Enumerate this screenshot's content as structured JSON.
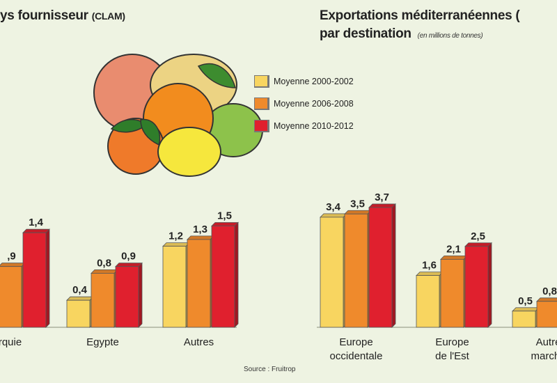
{
  "titles": {
    "left": "ys fournisseur",
    "left_suffix": "(CLAM)",
    "right_line1": "Exportations méditerranéennes (",
    "right_line2": "par destination",
    "right_unit": "(en millions de tonnes)"
  },
  "legend": [
    {
      "label": "Moyenne 2000-2002",
      "color": "#f8d560"
    },
    {
      "label": "Moyenne 2006-2008",
      "color": "#ef8a2c"
    },
    {
      "label": "Moyenne 2010-2012",
      "color": "#e0202e"
    }
  ],
  "source": "Source : Fruitrop",
  "chart_data": [
    {
      "type": "bar",
      "title": "ys fournisseur (CLAM)",
      "categories": [
        "rquie",
        "Egypte",
        "Autres"
      ],
      "series": [
        {
          "name": "Moyenne 2000-2002",
          "values": [
            null,
            0.4,
            1.2
          ],
          "labels": [
            "",
            "0,4",
            "1,2"
          ]
        },
        {
          "name": "Moyenne 2006-2008",
          "values": [
            0.9,
            0.8,
            1.3
          ],
          "labels": [
            ",9",
            "0,8",
            "1,3"
          ]
        },
        {
          "name": "Moyenne 2010-2012",
          "values": [
            1.4,
            0.9,
            1.5
          ],
          "labels": [
            "1,4",
            "0,9",
            "1,5"
          ]
        }
      ]
    },
    {
      "type": "bar",
      "title": "Exportations méditerranéennes ( par destination",
      "unit": "(en millions de tonnes)",
      "categories": [
        "Europe occidentale",
        "Europe de l'Est",
        "Autres marché"
      ],
      "category_lines": [
        [
          "Europe",
          "occidentale"
        ],
        [
          "Europe",
          "de l'Est"
        ],
        [
          "Autre",
          "marché"
        ]
      ],
      "series": [
        {
          "name": "Moyenne 2000-2002",
          "values": [
            3.4,
            1.6,
            0.5
          ],
          "labels": [
            "3,4",
            "1,6",
            "0,5"
          ]
        },
        {
          "name": "Moyenne 2006-2008",
          "values": [
            3.5,
            2.1,
            0.8
          ],
          "labels": [
            "3,5",
            "2,1",
            "0,8"
          ]
        },
        {
          "name": "Moyenne 2010-2012",
          "values": [
            3.7,
            2.5,
            null
          ],
          "labels": [
            "3,7",
            "2,5",
            ""
          ]
        }
      ]
    }
  ]
}
